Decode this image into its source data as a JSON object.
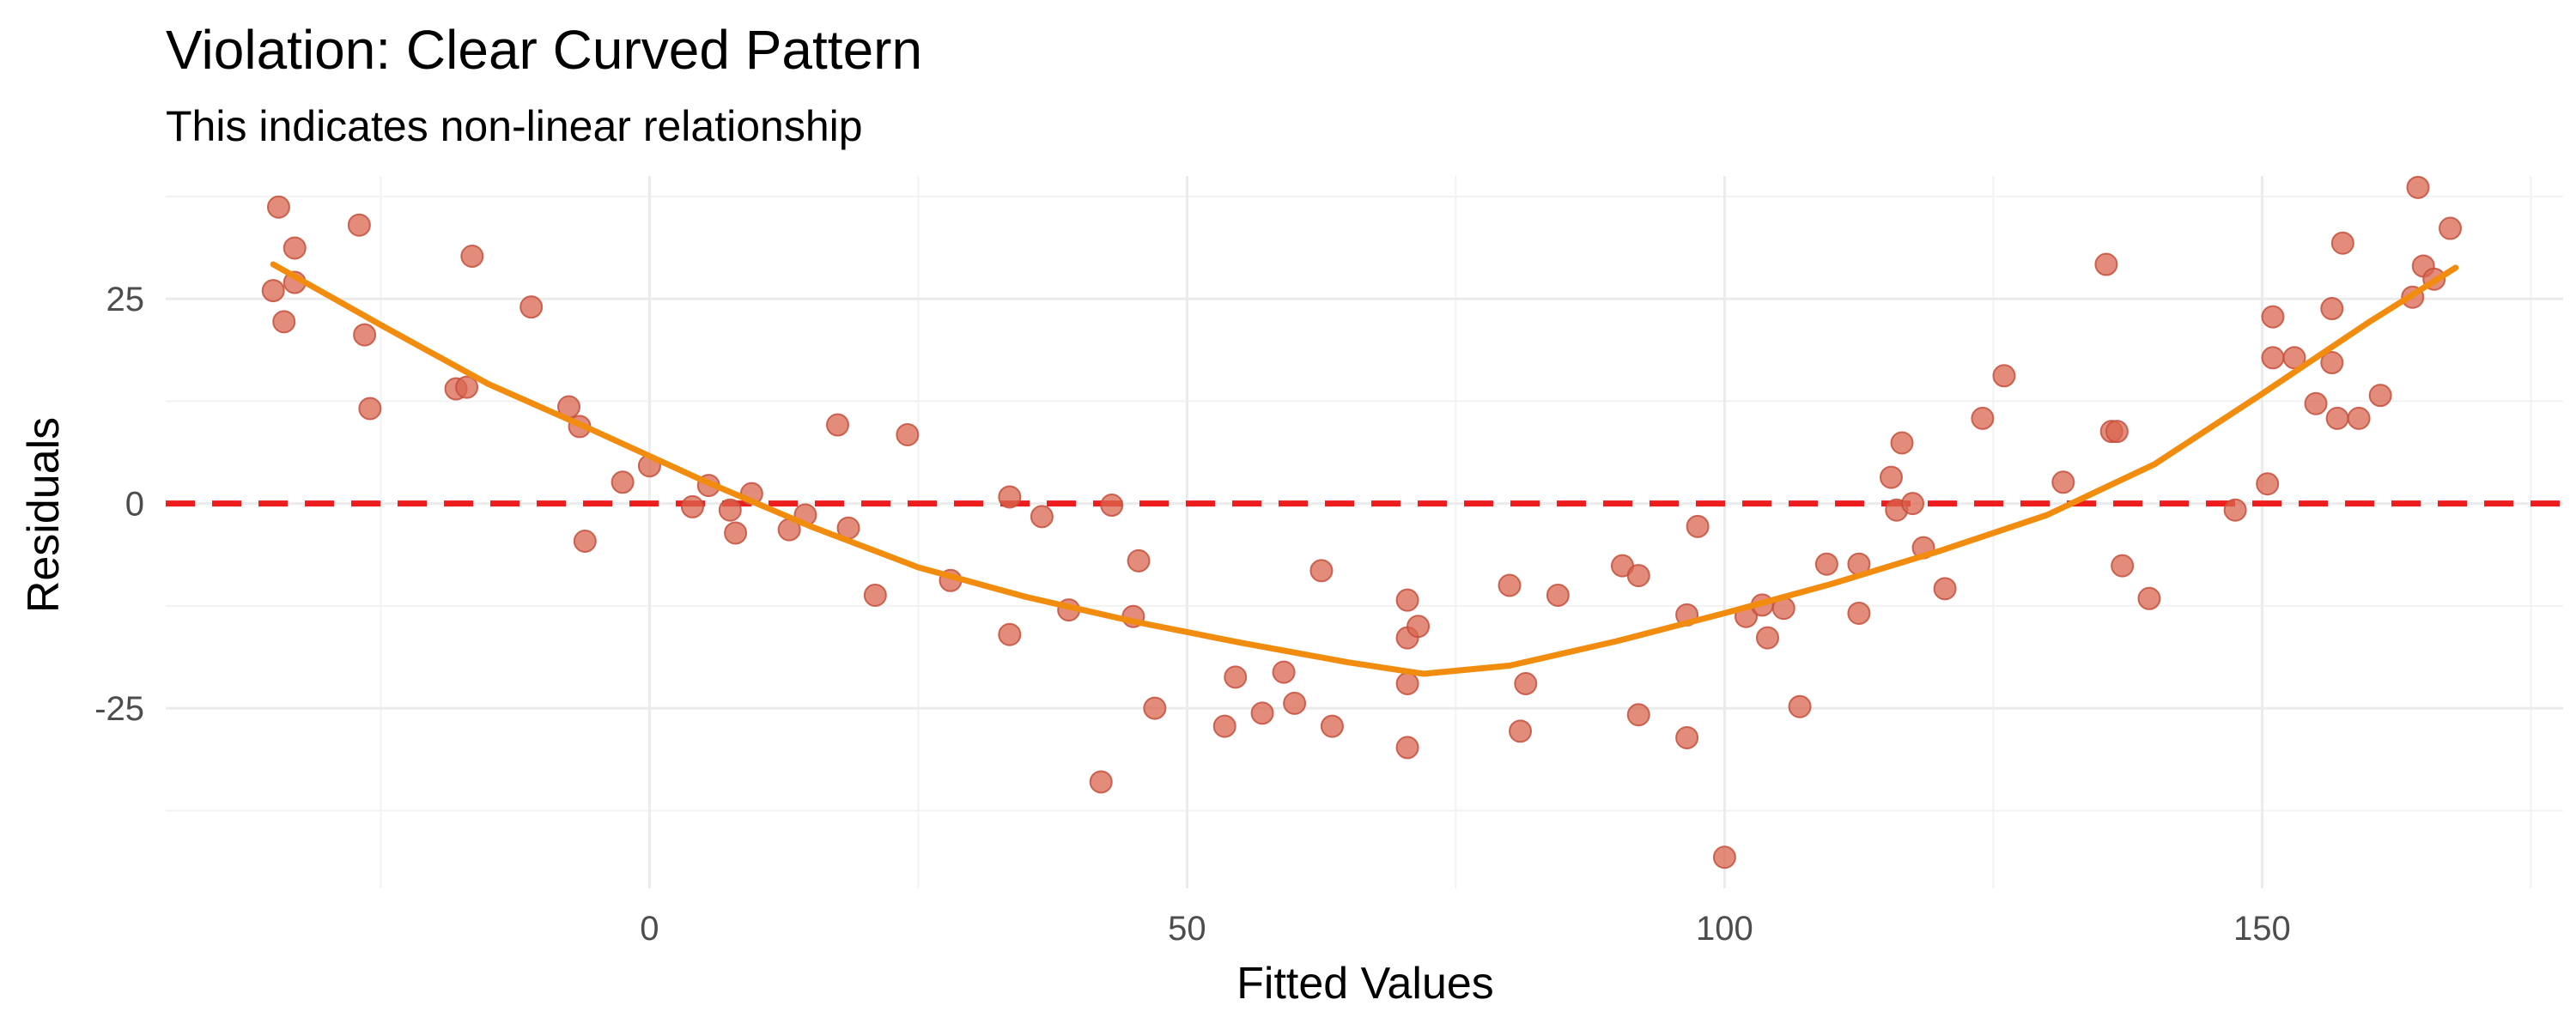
{
  "chart_data": {
    "type": "scatter",
    "title": "Violation: Clear Curved Pattern",
    "subtitle": "This indicates non-linear relationship",
    "xlabel": "Fitted Values",
    "ylabel": "Residuals",
    "xlim": [
      -45,
      178
    ],
    "ylim": [
      -47,
      40
    ],
    "x_ticks": [
      0,
      50,
      100,
      150
    ],
    "y_ticks": [
      -25,
      0,
      25
    ],
    "x_minor_ticks": [
      -25,
      25,
      75,
      125,
      175
    ],
    "y_minor_ticks": [
      -37.5,
      -12.5,
      12.5,
      37.5
    ],
    "grid": true,
    "colors": {
      "points": "#D9654F",
      "smooth": "#F28C0F",
      "zero_line": "#EE1C1C"
    },
    "points": [
      {
        "x": -34.5,
        "y": 36.2
      },
      {
        "x": -35,
        "y": 26.0
      },
      {
        "x": -34,
        "y": 22.2
      },
      {
        "x": -33,
        "y": 31.2
      },
      {
        "x": -33,
        "y": 27.0
      },
      {
        "x": -27,
        "y": 34.0
      },
      {
        "x": -26.5,
        "y": 20.6
      },
      {
        "x": -26,
        "y": 11.6
      },
      {
        "x": -18,
        "y": 14.0
      },
      {
        "x": -17,
        "y": 14.2
      },
      {
        "x": -16.5,
        "y": 30.2
      },
      {
        "x": -11,
        "y": 24.0
      },
      {
        "x": -7.5,
        "y": 11.8
      },
      {
        "x": -6.5,
        "y": 9.4
      },
      {
        "x": -6,
        "y": -4.6
      },
      {
        "x": -2.5,
        "y": 2.6
      },
      {
        "x": 0,
        "y": 4.6
      },
      {
        "x": 4,
        "y": -0.4
      },
      {
        "x": 5.5,
        "y": 2.2
      },
      {
        "x": 7.5,
        "y": -0.8
      },
      {
        "x": 8,
        "y": -3.6
      },
      {
        "x": 9.5,
        "y": 1.2
      },
      {
        "x": 13,
        "y": -3.2
      },
      {
        "x": 14.5,
        "y": -1.4
      },
      {
        "x": 17.5,
        "y": 9.6
      },
      {
        "x": 18.5,
        "y": -3.0
      },
      {
        "x": 21,
        "y": -11.2
      },
      {
        "x": 24,
        "y": 8.4
      },
      {
        "x": 28,
        "y": -9.4
      },
      {
        "x": 33.5,
        "y": -16.0
      },
      {
        "x": 33.5,
        "y": 0.8
      },
      {
        "x": 36.5,
        "y": -1.6
      },
      {
        "x": 39,
        "y": -13.0
      },
      {
        "x": 42,
        "y": -34.0
      },
      {
        "x": 43,
        "y": -0.2
      },
      {
        "x": 45,
        "y": -13.8
      },
      {
        "x": 45.5,
        "y": -7.0
      },
      {
        "x": 47,
        "y": -25.0
      },
      {
        "x": 53.5,
        "y": -27.2
      },
      {
        "x": 54.5,
        "y": -21.2
      },
      {
        "x": 57,
        "y": -25.6
      },
      {
        "x": 59,
        "y": -20.6
      },
      {
        "x": 60,
        "y": -24.4
      },
      {
        "x": 62.5,
        "y": -8.2
      },
      {
        "x": 63.5,
        "y": -27.2
      },
      {
        "x": 70.5,
        "y": -29.8
      },
      {
        "x": 70.5,
        "y": -22.0
      },
      {
        "x": 70.5,
        "y": -16.4
      },
      {
        "x": 71.5,
        "y": -15.0
      },
      {
        "x": 70.5,
        "y": -11.8
      },
      {
        "x": 80,
        "y": -10.0
      },
      {
        "x": 81,
        "y": -27.8
      },
      {
        "x": 81.5,
        "y": -22.0
      },
      {
        "x": 84.5,
        "y": -11.2
      },
      {
        "x": 90.5,
        "y": -7.6
      },
      {
        "x": 92,
        "y": -8.8
      },
      {
        "x": 92,
        "y": -25.8
      },
      {
        "x": 96.5,
        "y": -28.6
      },
      {
        "x": 96.5,
        "y": -13.6
      },
      {
        "x": 97.5,
        "y": -2.8
      },
      {
        "x": 100,
        "y": -43.2
      },
      {
        "x": 102,
        "y": -13.8
      },
      {
        "x": 103.5,
        "y": -12.4
      },
      {
        "x": 104,
        "y": -16.4
      },
      {
        "x": 105.5,
        "y": -12.8
      },
      {
        "x": 107,
        "y": -24.8
      },
      {
        "x": 109.5,
        "y": -7.4
      },
      {
        "x": 112.5,
        "y": -13.4
      },
      {
        "x": 112.5,
        "y": -7.4
      },
      {
        "x": 115.5,
        "y": 3.2
      },
      {
        "x": 116,
        "y": -0.8
      },
      {
        "x": 116.5,
        "y": 7.4
      },
      {
        "x": 117.5,
        "y": 0.0
      },
      {
        "x": 118.5,
        "y": -5.4
      },
      {
        "x": 120.5,
        "y": -10.4
      },
      {
        "x": 124,
        "y": 10.4
      },
      {
        "x": 126,
        "y": 15.6
      },
      {
        "x": 131.5,
        "y": 2.6
      },
      {
        "x": 135.5,
        "y": 29.2
      },
      {
        "x": 136,
        "y": 8.8
      },
      {
        "x": 136.5,
        "y": 8.8
      },
      {
        "x": 137,
        "y": -7.6
      },
      {
        "x": 139.5,
        "y": -11.6
      },
      {
        "x": 147.5,
        "y": -0.8
      },
      {
        "x": 150.5,
        "y": 2.4
      },
      {
        "x": 151,
        "y": 17.8
      },
      {
        "x": 151,
        "y": 22.8
      },
      {
        "x": 153,
        "y": 17.8
      },
      {
        "x": 155,
        "y": 12.2
      },
      {
        "x": 156.5,
        "y": 17.2
      },
      {
        "x": 156.5,
        "y": 23.8
      },
      {
        "x": 157,
        "y": 10.4
      },
      {
        "x": 157.5,
        "y": 31.8
      },
      {
        "x": 159,
        "y": 10.4
      },
      {
        "x": 161,
        "y": 13.2
      },
      {
        "x": 164,
        "y": 25.2
      },
      {
        "x": 164.5,
        "y": 38.6
      },
      {
        "x": 165,
        "y": 29.0
      },
      {
        "x": 166,
        "y": 27.4
      },
      {
        "x": 167.5,
        "y": 33.6
      }
    ],
    "smooth_line": [
      {
        "x": -35,
        "y": 29.2
      },
      {
        "x": -25,
        "y": 21.8
      },
      {
        "x": -15,
        "y": 14.6
      },
      {
        "x": -5,
        "y": 8.8
      },
      {
        "x": 5,
        "y": 2.8
      },
      {
        "x": 15,
        "y": -2.8
      },
      {
        "x": 25,
        "y": -7.8
      },
      {
        "x": 35,
        "y": -11.4
      },
      {
        "x": 45,
        "y": -14.4
      },
      {
        "x": 55,
        "y": -17.0
      },
      {
        "x": 65,
        "y": -19.4
      },
      {
        "x": 72,
        "y": -20.8
      },
      {
        "x": 80,
        "y": -19.8
      },
      {
        "x": 90,
        "y": -16.8
      },
      {
        "x": 100,
        "y": -13.4
      },
      {
        "x": 110,
        "y": -9.8
      },
      {
        "x": 120,
        "y": -5.8
      },
      {
        "x": 130,
        "y": -1.4
      },
      {
        "x": 140,
        "y": 4.8
      },
      {
        "x": 150,
        "y": 13.4
      },
      {
        "x": 160,
        "y": 22.2
      },
      {
        "x": 168,
        "y": 28.8
      }
    ],
    "reference_line": {
      "y": 0,
      "style": "dashed"
    }
  }
}
